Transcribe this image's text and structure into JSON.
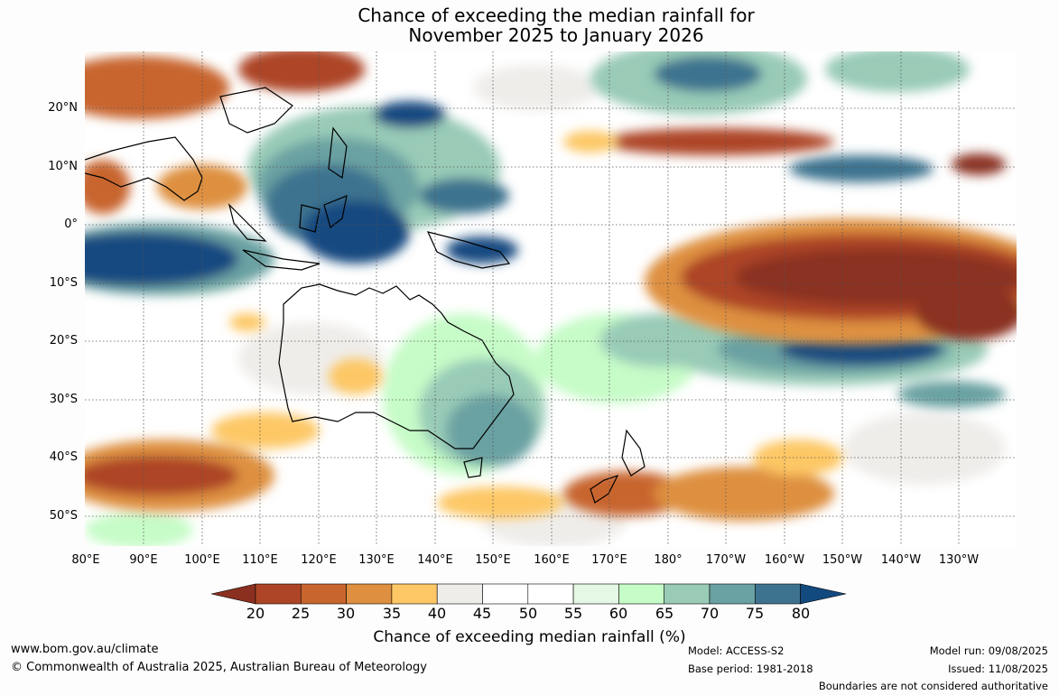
{
  "title": {
    "line1": "Chance of exceeding the median rainfall for",
    "line2": "November 2025 to January 2026"
  },
  "map": {
    "projection": "equirectangular",
    "lon_range": [
      "80°E",
      "120°W"
    ],
    "lat_range": [
      "55°S",
      "30°N"
    ],
    "lat_labels": [
      "20°N",
      "10°N",
      "0°",
      "10°S",
      "20°S",
      "30°S",
      "40°S",
      "50°S"
    ],
    "lon_labels": [
      "80°E",
      "90°E",
      "100°E",
      "110°E",
      "120°E",
      "130°E",
      "140°E",
      "150°E",
      "160°E",
      "170°E",
      "180°",
      "170°W",
      "160°W",
      "150°W",
      "140°W",
      "130°W"
    ],
    "gridlines": "dotted",
    "coastline_color": "#000000"
  },
  "colorbar": {
    "ticks": [
      "20",
      "25",
      "30",
      "35",
      "40",
      "45",
      "50",
      "55",
      "60",
      "65",
      "70",
      "75",
      "80"
    ],
    "colors": [
      "#8b3020",
      "#ad4426",
      "#c8652e",
      "#de9040",
      "#fdc765",
      "#efedea",
      "#ffffff",
      "#ffffff",
      "#e5f7e5",
      "#c6fcc7",
      "#99cbb7",
      "#6aa1a2",
      "#3e738f",
      "#124a80"
    ],
    "label": "Chance of exceeding median rainfall (%)"
  },
  "footer": {
    "website": "www.bom.gov.au/climate",
    "copyright": "© Commonwealth of Australia 2025, Australian Bureau of Meteorology",
    "model": "Model: ACCESS-S2",
    "base_period": "Base period: 1981-2018",
    "model_run": "Model run: 09/08/2025",
    "issued": "Issued: 11/08/2025",
    "disclaimer": "Boundaries are not considered authoritative"
  }
}
